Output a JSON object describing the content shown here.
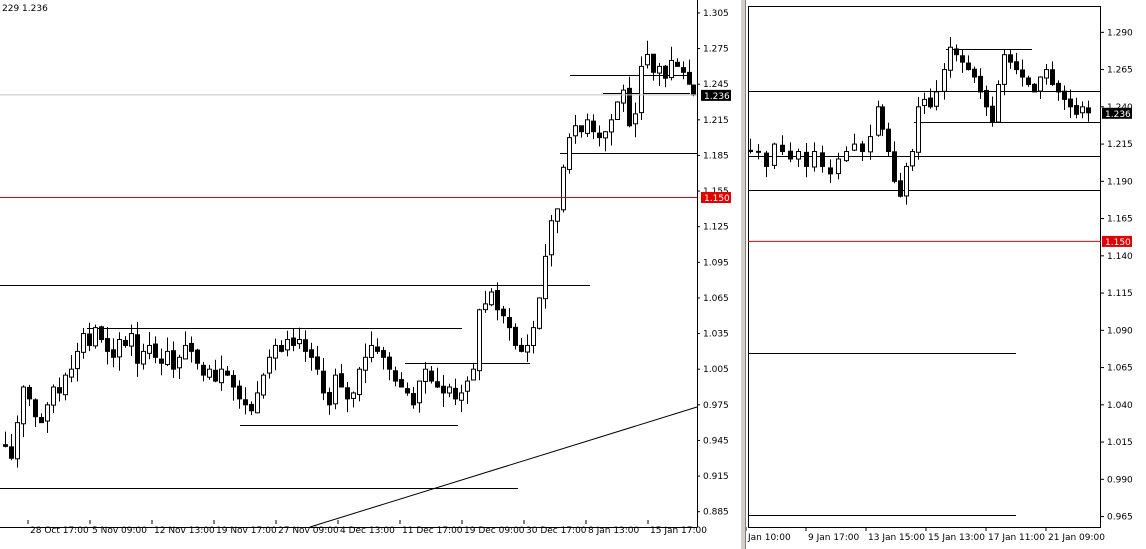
{
  "colors": {
    "background": "#ffffff",
    "candle": "#000000",
    "bid_line": "#c0c0c0",
    "level_line": "#e00000",
    "level_label_bg": "#e00000",
    "price_label_bg": "#000000",
    "label_text": "#ffffff"
  },
  "left_chart": {
    "header_text": "229 1.236",
    "current_price": "1.236",
    "level_price": "1.150"
  },
  "right_chart": {
    "current_price": "1.236",
    "level_price": "1.150"
  },
  "chart_data": [
    {
      "type": "candlestick",
      "title": "",
      "y_ticks": [
        1.305,
        1.275,
        1.245,
        1.215,
        1.185,
        1.155,
        1.125,
        1.095,
        1.065,
        1.035,
        1.005,
        0.975,
        0.945,
        0.915,
        0.885
      ],
      "ylim": [
        0.878,
        1.31
      ],
      "x_ticks": [
        "28 Oct 17:00",
        "5 Nov 09:00",
        "12 Nov 13:00",
        "19 Nov 17:00",
        "27 Nov 09:00",
        "4 Dec 13:00",
        "11 Dec 17:00",
        "19 Dec 09:00",
        "30 Dec 17:00",
        "8 Jan 13:00",
        "15 Jan 17:00"
      ],
      "current_price": 1.236,
      "horizontal_level": 1.15,
      "grid": false,
      "close_path": [
        [
          0,
          0.94
        ],
        [
          6,
          0.93
        ],
        [
          12,
          0.96
        ],
        [
          18,
          0.99
        ],
        [
          24,
          0.98
        ],
        [
          30,
          0.965
        ],
        [
          36,
          0.96
        ],
        [
          42,
          0.975
        ],
        [
          48,
          0.99
        ],
        [
          54,
          0.985
        ],
        [
          60,
          1.0
        ],
        [
          66,
          1.005
        ],
        [
          72,
          1.02
        ],
        [
          78,
          1.035
        ],
        [
          84,
          1.025
        ],
        [
          90,
          1.04
        ],
        [
          96,
          1.03
        ],
        [
          102,
          1.02
        ],
        [
          108,
          1.015
        ],
        [
          114,
          1.03
        ],
        [
          120,
          1.025
        ],
        [
          126,
          1.035
        ],
        [
          132,
          1.01
        ],
        [
          138,
          1.02
        ],
        [
          144,
          1.025
        ],
        [
          150,
          1.015
        ],
        [
          156,
          1.01
        ],
        [
          162,
          1.02
        ],
        [
          168,
          1.005
        ],
        [
          174,
          1.015
        ],
        [
          180,
          1.025
        ],
        [
          186,
          1.02
        ],
        [
          192,
          1.01
        ],
        [
          198,
          1.0
        ],
        [
          204,
          1.005
        ],
        [
          210,
          0.995
        ],
        [
          216,
          1.005
        ],
        [
          222,
          1.0
        ],
        [
          228,
          0.99
        ],
        [
          234,
          0.98
        ],
        [
          240,
          0.975
        ],
        [
          246,
          0.97
        ],
        [
          252,
          0.985
        ],
        [
          258,
          1.0
        ],
        [
          264,
          1.015
        ],
        [
          270,
          1.025
        ],
        [
          276,
          1.02
        ],
        [
          282,
          1.03
        ],
        [
          288,
          1.025
        ],
        [
          294,
          1.03
        ],
        [
          300,
          1.02
        ],
        [
          306,
          1.015
        ],
        [
          312,
          1.005
        ],
        [
          318,
          0.985
        ],
        [
          324,
          0.975
        ],
        [
          330,
          1.0
        ],
        [
          336,
          0.99
        ],
        [
          342,
          0.98
        ],
        [
          348,
          0.985
        ],
        [
          354,
          1.005
        ],
        [
          360,
          1.015
        ],
        [
          366,
          1.025
        ],
        [
          372,
          1.02
        ],
        [
          378,
          1.015
        ],
        [
          384,
          1.005
        ],
        [
          390,
          0.995
        ],
        [
          396,
          0.99
        ],
        [
          402,
          0.985
        ],
        [
          408,
          0.975
        ],
        [
          414,
          0.995
        ],
        [
          420,
          1.005
        ],
        [
          426,
          0.995
        ],
        [
          432,
          0.99
        ],
        [
          438,
          0.985
        ],
        [
          444,
          0.99
        ],
        [
          450,
          0.98
        ],
        [
          456,
          0.985
        ],
        [
          462,
          0.995
        ],
        [
          468,
          1.005
        ],
        [
          474,
          1.055
        ],
        [
          480,
          1.06
        ],
        [
          486,
          1.07
        ],
        [
          492,
          1.055
        ],
        [
          498,
          1.05
        ],
        [
          504,
          1.04
        ],
        [
          510,
          1.025
        ],
        [
          516,
          1.02
        ],
        [
          522,
          1.025
        ],
        [
          528,
          1.04
        ],
        [
          534,
          1.065
        ],
        [
          540,
          1.1
        ],
        [
          546,
          1.13
        ],
        [
          552,
          1.14
        ],
        [
          558,
          1.175
        ],
        [
          564,
          1.2
        ],
        [
          570,
          1.21
        ],
        [
          576,
          1.205
        ],
        [
          582,
          1.215
        ],
        [
          588,
          1.205
        ],
        [
          594,
          1.2
        ],
        [
          600,
          1.205
        ],
        [
          606,
          1.215
        ],
        [
          612,
          1.23
        ],
        [
          618,
          1.24
        ],
        [
          624,
          1.21
        ],
        [
          630,
          1.22
        ],
        [
          636,
          1.26
        ],
        [
          642,
          1.27
        ],
        [
          648,
          1.255
        ],
        [
          654,
          1.26
        ],
        [
          660,
          1.25
        ],
        [
          666,
          1.265
        ],
        [
          672,
          1.26
        ],
        [
          678,
          1.255
        ],
        [
          684,
          1.245
        ],
        [
          688,
          1.236
        ]
      ]
    },
    {
      "type": "candlestick",
      "title": "",
      "y_ticks": [
        1.29,
        1.265,
        1.24,
        1.215,
        1.19,
        1.165,
        1.14,
        1.115,
        1.09,
        1.065,
        1.04,
        1.015,
        0.99,
        0.965
      ],
      "ylim": [
        0.958,
        1.307
      ],
      "x_ticks": [
        "Jan 10:00",
        "9 Jan 17:00",
        "13 Jan 15:00",
        "15 Jan 13:00",
        "17 Jan 11:00",
        "21 Jan 09:00"
      ],
      "current_price": 1.236,
      "horizontal_level": 1.15,
      "grid": false,
      "close_path": [
        [
          0,
          1.21
        ],
        [
          8,
          1.21
        ],
        [
          16,
          1.2
        ],
        [
          24,
          1.215
        ],
        [
          32,
          1.21
        ],
        [
          40,
          1.205
        ],
        [
          48,
          1.21
        ],
        [
          56,
          1.2
        ],
        [
          64,
          1.21
        ],
        [
          72,
          1.2
        ],
        [
          80,
          1.195
        ],
        [
          88,
          1.205
        ],
        [
          96,
          1.21
        ],
        [
          104,
          1.215
        ],
        [
          112,
          1.21
        ],
        [
          120,
          1.22
        ],
        [
          128,
          1.24
        ],
        [
          132,
          1.225
        ],
        [
          138,
          1.21
        ],
        [
          144,
          1.19
        ],
        [
          150,
          1.18
        ],
        [
          156,
          1.2
        ],
        [
          162,
          1.21
        ],
        [
          168,
          1.24
        ],
        [
          174,
          1.245
        ],
        [
          180,
          1.24
        ],
        [
          186,
          1.25
        ],
        [
          194,
          1.265
        ],
        [
          200,
          1.28
        ],
        [
          206,
          1.275
        ],
        [
          212,
          1.27
        ],
        [
          218,
          1.265
        ],
        [
          224,
          1.26
        ],
        [
          230,
          1.25
        ],
        [
          236,
          1.24
        ],
        [
          242,
          1.23
        ],
        [
          248,
          1.255
        ],
        [
          254,
          1.275
        ],
        [
          260,
          1.27
        ],
        [
          266,
          1.265
        ],
        [
          272,
          1.26
        ],
        [
          278,
          1.255
        ],
        [
          284,
          1.25
        ],
        [
          290,
          1.26
        ],
        [
          296,
          1.265
        ],
        [
          302,
          1.255
        ],
        [
          308,
          1.25
        ],
        [
          314,
          1.245
        ],
        [
          320,
          1.24
        ],
        [
          326,
          1.235
        ],
        [
          332,
          1.24
        ],
        [
          338,
          1.236
        ]
      ]
    }
  ]
}
